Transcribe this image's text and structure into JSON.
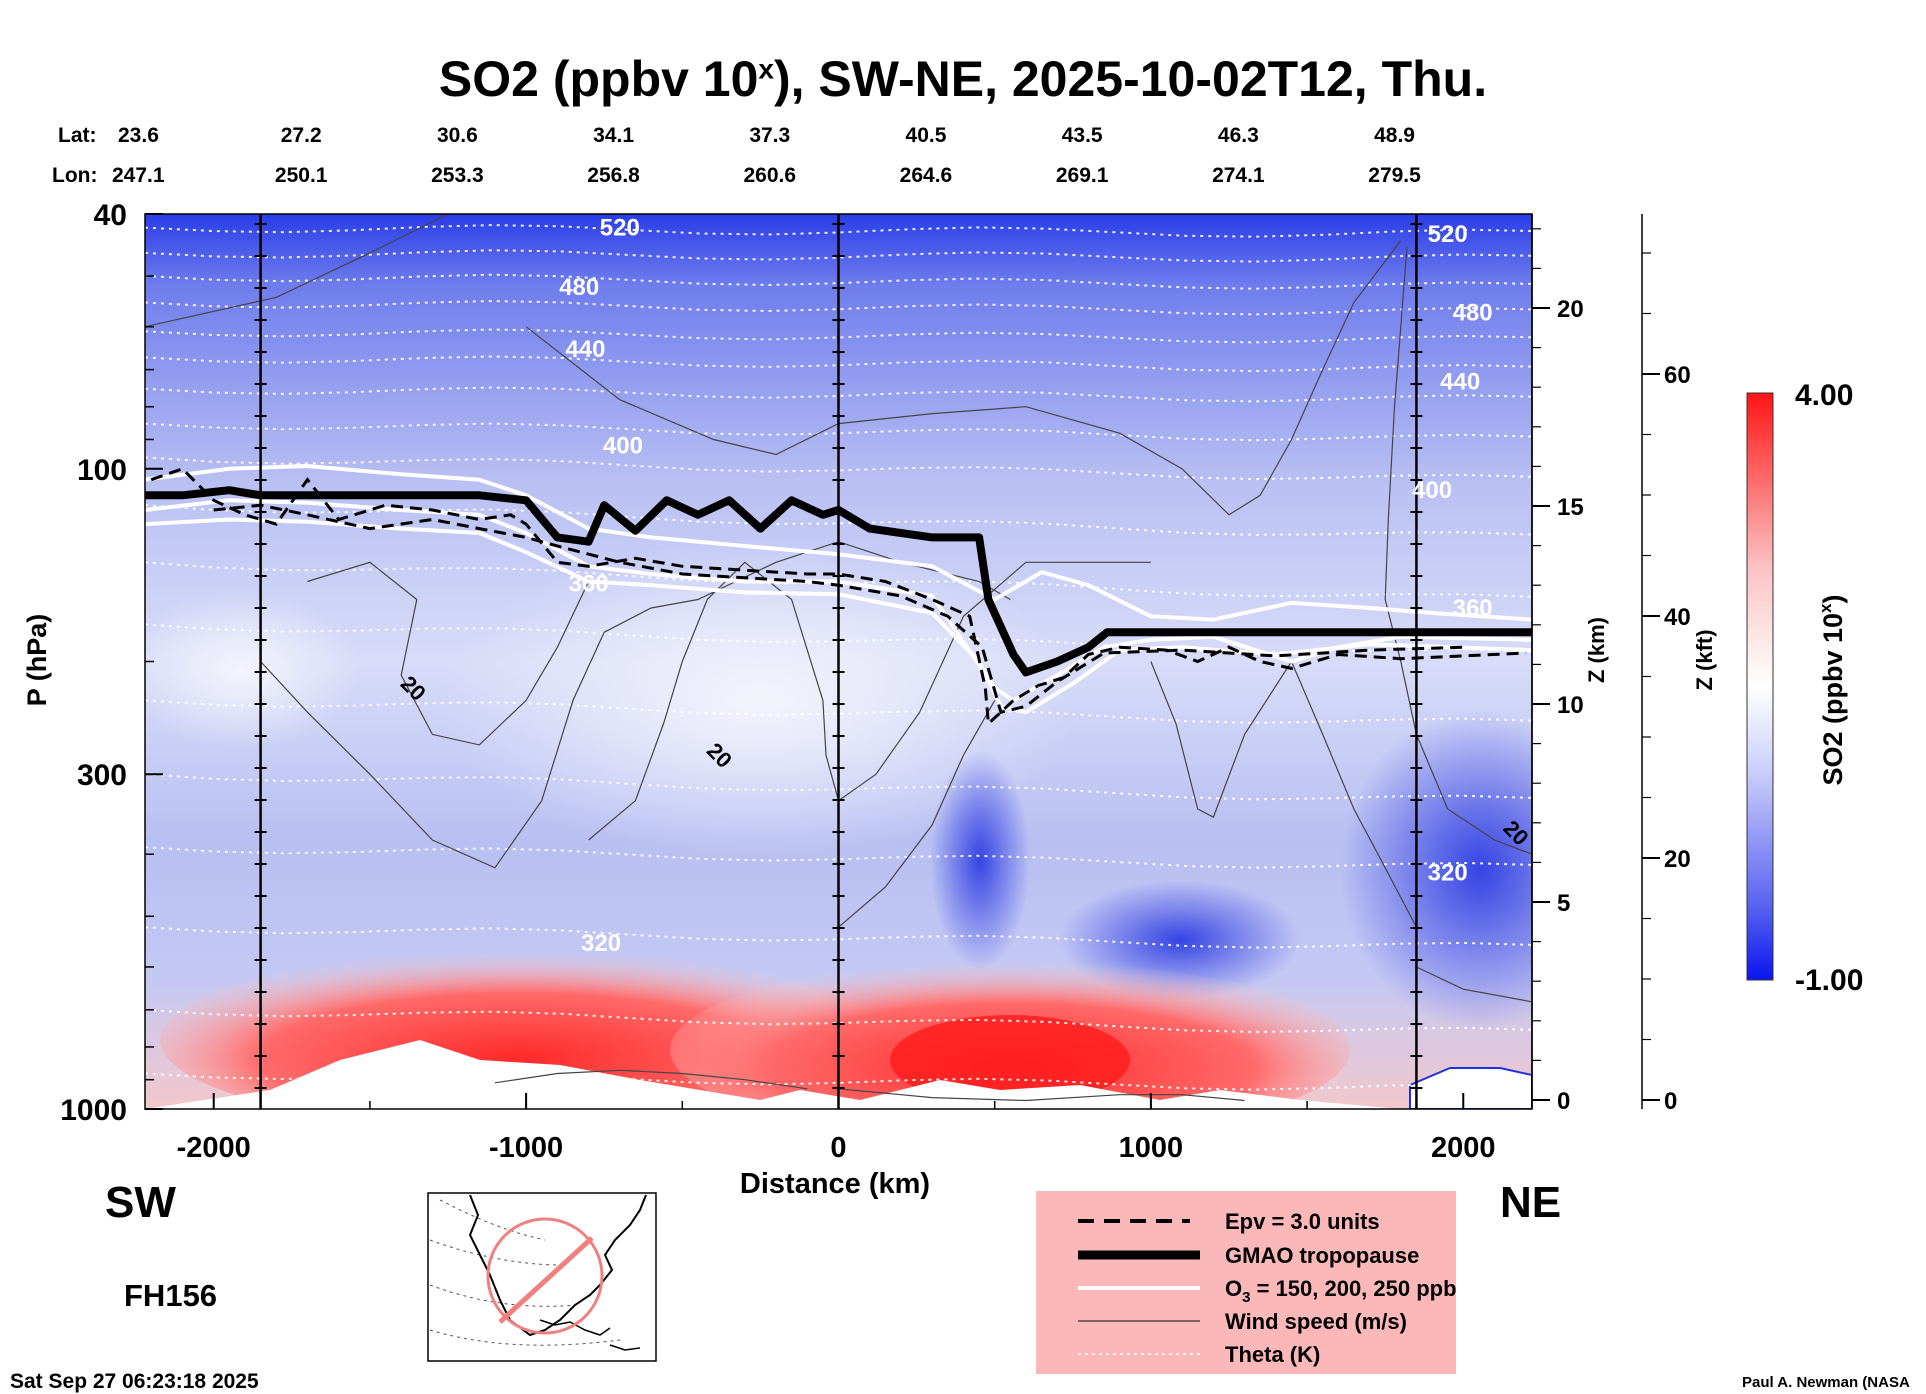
{
  "chart_data": {
    "type": "heatmap",
    "title_main": "SO2 (ppbv 10",
    "title_sup": "x",
    "title_rest": "), SW-NE, 2025-10-02T12, Thu.",
    "xlabel": "Distance (km)",
    "ylabel": "P (hPa)",
    "xlim": [
      -2220,
      2220
    ],
    "ylim_hpa": [
      1000,
      40
    ],
    "y_scale": "log",
    "x_ticks": [
      -2000,
      -1000,
      0,
      1000,
      2000
    ],
    "y_ticks": [
      {
        "p": 40,
        "label": "40"
      },
      {
        "p": 100,
        "label": "100"
      },
      {
        "p": 300,
        "label": "300"
      },
      {
        "p": 1000,
        "label": "1000"
      }
    ],
    "z_km_label": "Z (km)",
    "z_km_ticks": [
      0,
      5,
      10,
      15,
      20
    ],
    "z_kft_label": "Z (kft)",
    "z_kft_ticks": [
      0,
      20,
      40,
      60
    ],
    "direction_left": "SW",
    "direction_right": "NE",
    "lat_label": "Lat:",
    "lon_label": "Lon:",
    "lat_lon": [
      {
        "x": -2220,
        "lat": "23.6",
        "lon": "247.1"
      },
      {
        "x": -1720,
        "lat": "27.2",
        "lon": "250.1"
      },
      {
        "x": -1220,
        "lat": "30.6",
        "lon": "253.3"
      },
      {
        "x": -720,
        "lat": "34.1",
        "lon": "256.8"
      },
      {
        "x": -220,
        "lat": "37.3",
        "lon": "260.6"
      },
      {
        "x": 280,
        "lat": "40.5",
        "lon": "264.6"
      },
      {
        "x": 780,
        "lat": "43.5",
        "lon": "269.1"
      },
      {
        "x": 1280,
        "lat": "46.3",
        "lon": "274.1"
      },
      {
        "x": 1780,
        "lat": "48.9",
        "lon": "279.5"
      }
    ],
    "vertical_markers_km": [
      -1850,
      0,
      1850
    ],
    "colorbar": {
      "label_main": "SO2 (ppbv 10",
      "label_sup": "x",
      "label_rest": ")",
      "max_label": "4.00",
      "min_label": "-1.00",
      "min": -1.0,
      "max": 4.0,
      "colors": [
        "#0a14f0",
        "#ffffff",
        "#ff1414"
      ]
    },
    "theta_labels": [
      {
        "x": -700,
        "p": 42,
        "text": "520"
      },
      {
        "x": 1950,
        "p": 43,
        "text": "520"
      },
      {
        "x": -830,
        "p": 52,
        "text": "480"
      },
      {
        "x": 2030,
        "p": 57,
        "text": "480"
      },
      {
        "x": -810,
        "p": 65,
        "text": "440"
      },
      {
        "x": 1990,
        "p": 73,
        "text": "440"
      },
      {
        "x": -690,
        "p": 92,
        "text": "400"
      },
      {
        "x": 1900,
        "p": 108,
        "text": "400"
      },
      {
        "x": -800,
        "p": 151,
        "text": "360"
      },
      {
        "x": 2030,
        "p": 165,
        "text": "360"
      },
      {
        "x": -760,
        "p": 550,
        "text": "320"
      },
      {
        "x": 1950,
        "p": 427,
        "text": "320"
      }
    ],
    "wind_labels": [
      {
        "x": -1360,
        "p": 220,
        "text": "20"
      },
      {
        "x": -380,
        "p": 280,
        "text": "20"
      },
      {
        "x": 2170,
        "p": 370,
        "text": "20"
      }
    ],
    "gmao_tropopause": [
      [
        -2220,
        110
      ],
      [
        -2100,
        110
      ],
      [
        -1950,
        108
      ],
      [
        -1850,
        110
      ],
      [
        -1500,
        110
      ],
      [
        -1150,
        110
      ],
      [
        -1000,
        112
      ],
      [
        -900,
        128
      ],
      [
        -800,
        130
      ],
      [
        -750,
        114
      ],
      [
        -650,
        125
      ],
      [
        -550,
        112
      ],
      [
        -450,
        118
      ],
      [
        -350,
        112
      ],
      [
        -250,
        124
      ],
      [
        -150,
        112
      ],
      [
        -50,
        118
      ],
      [
        0,
        116
      ],
      [
        100,
        124
      ],
      [
        300,
        128
      ],
      [
        450,
        128
      ],
      [
        480,
        160
      ],
      [
        560,
        195
      ],
      [
        600,
        208
      ],
      [
        700,
        200
      ],
      [
        800,
        190
      ],
      [
        860,
        180
      ],
      [
        1000,
        180
      ],
      [
        1500,
        180
      ],
      [
        2220,
        180
      ]
    ],
    "legend": {
      "epv": "Epv = 3.0 units",
      "tropopause": "GMAO tropopause",
      "o3_pre": "O",
      "o3_sub": "3",
      "o3_post": " = 150, 200, 250 ppb",
      "wind": "Wind speed (m/s)",
      "theta": "Theta (K)"
    },
    "forecast_hour": "FH156",
    "timestamp": "Sat Sep 27 06:23:18 2025",
    "credit": "Paul A. Newman (NASA"
  }
}
